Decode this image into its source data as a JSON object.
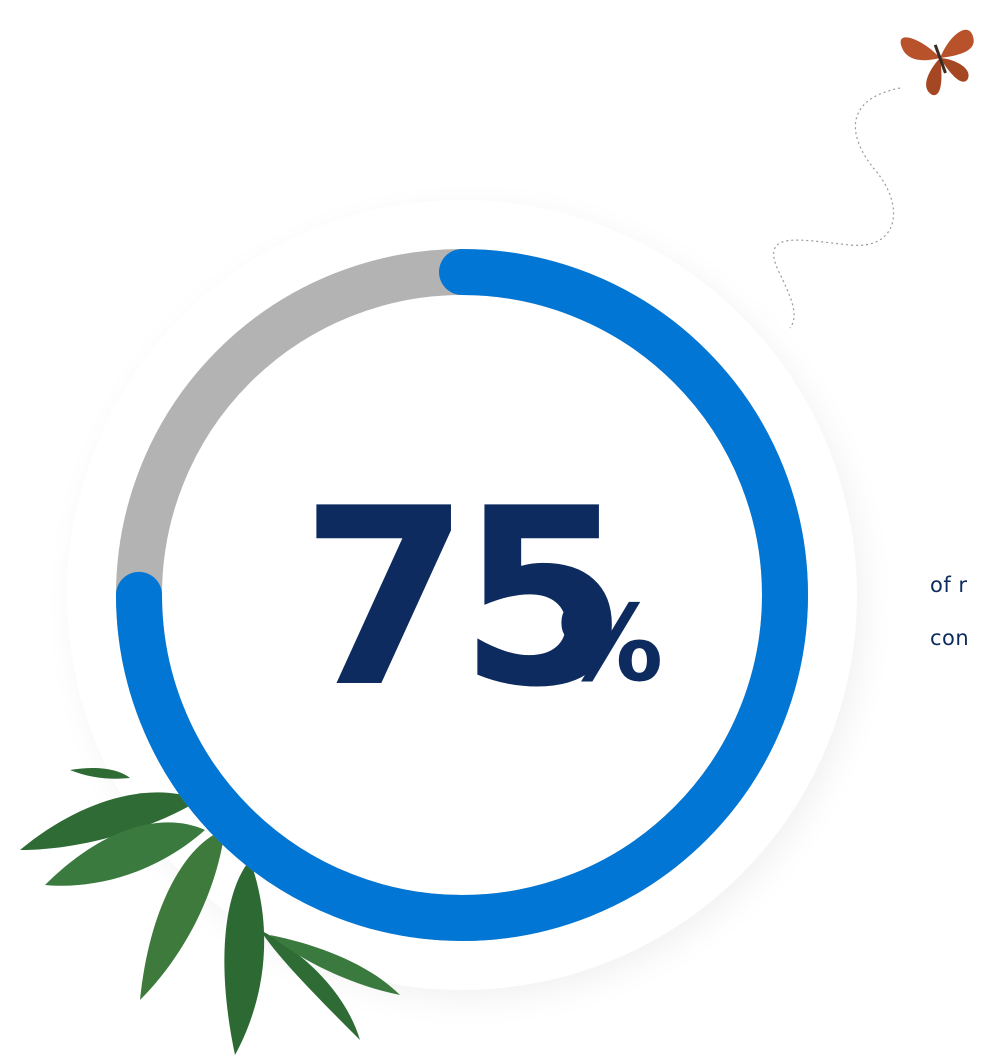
{
  "stat": {
    "value": 75,
    "value_label": "75",
    "unit": "%",
    "caption_lines": [
      "of r",
      "con"
    ]
  }
}
